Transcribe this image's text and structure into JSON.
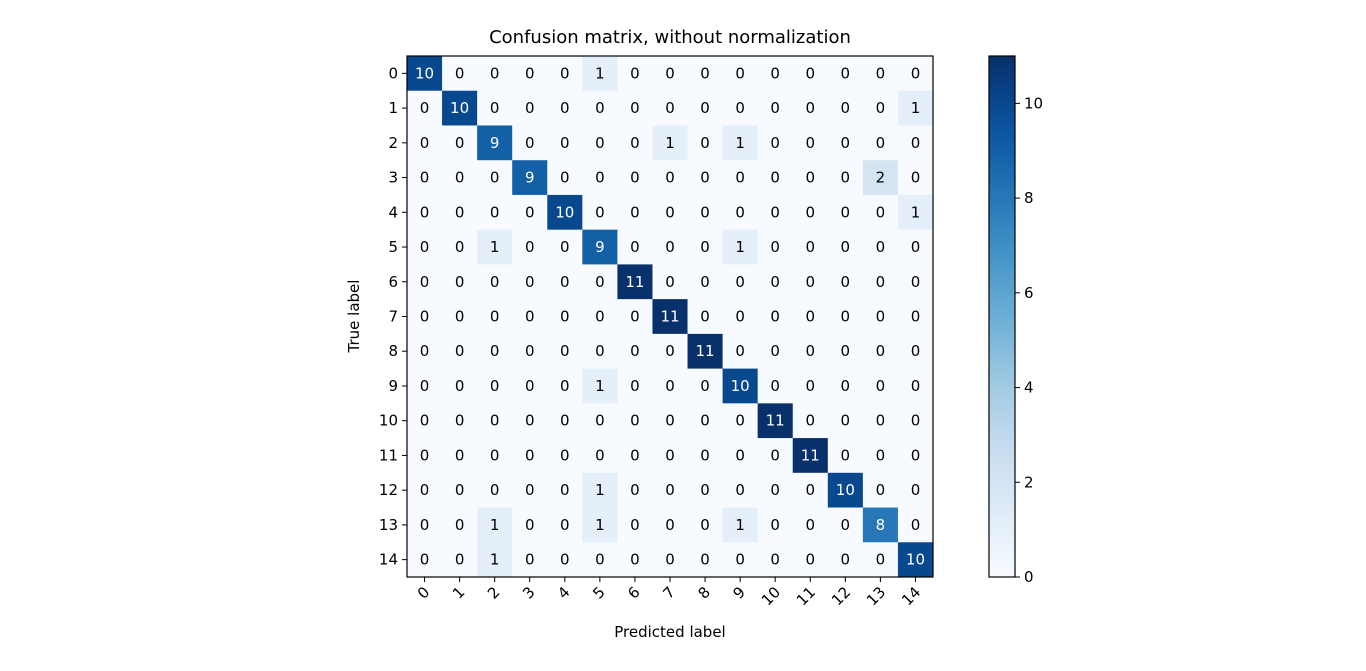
{
  "chart_data": {
    "type": "heatmap",
    "title": "Confusion matrix, without normalization",
    "xlabel": "Predicted label",
    "ylabel": "True label",
    "x_categories": [
      "0",
      "1",
      "2",
      "3",
      "4",
      "5",
      "6",
      "7",
      "8",
      "9",
      "10",
      "11",
      "12",
      "13",
      "14"
    ],
    "y_categories": [
      "0",
      "1",
      "2",
      "3",
      "4",
      "5",
      "6",
      "7",
      "8",
      "9",
      "10",
      "11",
      "12",
      "13",
      "14"
    ],
    "values": [
      [
        10,
        0,
        0,
        0,
        0,
        1,
        0,
        0,
        0,
        0,
        0,
        0,
        0,
        0,
        0
      ],
      [
        0,
        10,
        0,
        0,
        0,
        0,
        0,
        0,
        0,
        0,
        0,
        0,
        0,
        0,
        1
      ],
      [
        0,
        0,
        9,
        0,
        0,
        0,
        0,
        1,
        0,
        1,
        0,
        0,
        0,
        0,
        0
      ],
      [
        0,
        0,
        0,
        9,
        0,
        0,
        0,
        0,
        0,
        0,
        0,
        0,
        0,
        2,
        0
      ],
      [
        0,
        0,
        0,
        0,
        10,
        0,
        0,
        0,
        0,
        0,
        0,
        0,
        0,
        0,
        1
      ],
      [
        0,
        0,
        1,
        0,
        0,
        9,
        0,
        0,
        0,
        1,
        0,
        0,
        0,
        0,
        0
      ],
      [
        0,
        0,
        0,
        0,
        0,
        0,
        11,
        0,
        0,
        0,
        0,
        0,
        0,
        0,
        0
      ],
      [
        0,
        0,
        0,
        0,
        0,
        0,
        0,
        11,
        0,
        0,
        0,
        0,
        0,
        0,
        0
      ],
      [
        0,
        0,
        0,
        0,
        0,
        0,
        0,
        0,
        11,
        0,
        0,
        0,
        0,
        0,
        0
      ],
      [
        0,
        0,
        0,
        0,
        0,
        1,
        0,
        0,
        0,
        10,
        0,
        0,
        0,
        0,
        0
      ],
      [
        0,
        0,
        0,
        0,
        0,
        0,
        0,
        0,
        0,
        0,
        11,
        0,
        0,
        0,
        0
      ],
      [
        0,
        0,
        0,
        0,
        0,
        0,
        0,
        0,
        0,
        0,
        0,
        11,
        0,
        0,
        0
      ],
      [
        0,
        0,
        0,
        0,
        0,
        1,
        0,
        0,
        0,
        0,
        0,
        0,
        10,
        0,
        0
      ],
      [
        0,
        0,
        1,
        0,
        0,
        1,
        0,
        0,
        0,
        1,
        0,
        0,
        0,
        8,
        0
      ],
      [
        0,
        0,
        1,
        0,
        0,
        0,
        0,
        0,
        0,
        0,
        0,
        0,
        0,
        0,
        10
      ]
    ],
    "colormap": "Blues",
    "value_range": [
      0,
      11
    ],
    "colorbar_ticks": [
      "0",
      "2",
      "4",
      "6",
      "8",
      "10"
    ],
    "colorbar_tick_values": [
      0,
      2,
      4,
      6,
      8,
      10
    ]
  }
}
